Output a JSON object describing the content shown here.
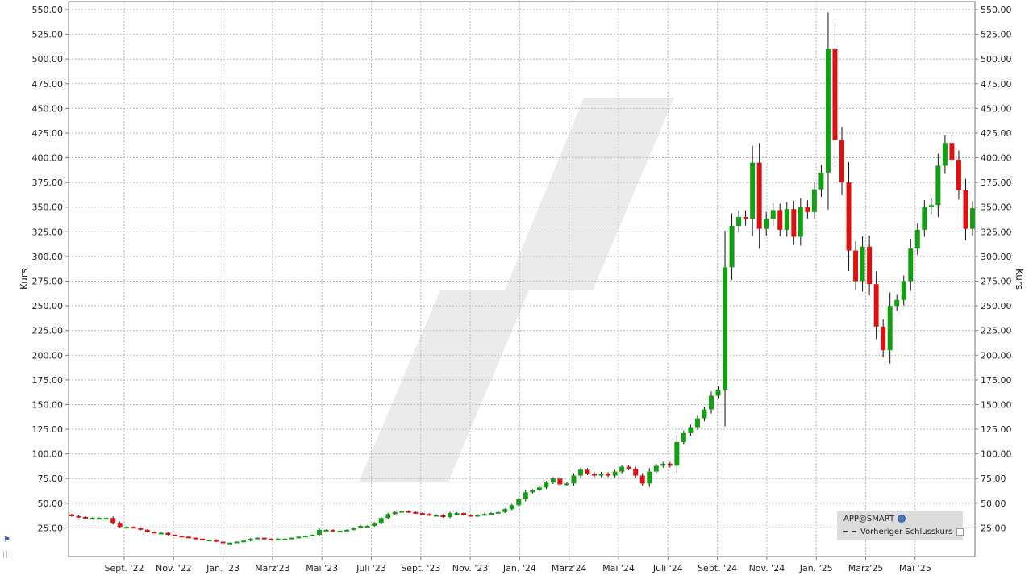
{
  "chart_data": {
    "type": "candlestick",
    "ylabel": "Kurs",
    "ylim": [
      0,
      560
    ],
    "yticks": [
      "25.00",
      "50.00",
      "75.00",
      "100.00",
      "125.00",
      "150.00",
      "175.00",
      "200.00",
      "225.00",
      "250.00",
      "275.00",
      "300.00",
      "325.00",
      "350.00",
      "375.00",
      "400.00",
      "425.00",
      "450.00",
      "475.00",
      "500.00",
      "525.00",
      "550.00"
    ],
    "xticks": [
      "Sept. '22",
      "Nov. '22",
      "Jan. '23",
      "März'23",
      "Mai '23",
      "Juli '23",
      "Sept. '23",
      "Nov. '23",
      "Jan. '24",
      "März'24",
      "Mai '24",
      "Juli '24",
      "Sept. '24",
      "Nov. '24",
      "Jan. '25",
      "März'25",
      "Mai '25"
    ],
    "grid": true,
    "legend_position": "bottom-right",
    "colors": {
      "up": "#11a011",
      "down": "#e01010",
      "grid": "#b9b9b9",
      "watermark": "#ebebeb"
    },
    "close": [
      37,
      36,
      35,
      35,
      35,
      35,
      30,
      26,
      26,
      25,
      23,
      21,
      20,
      20,
      18,
      17,
      16,
      15,
      14,
      13,
      13,
      11,
      10,
      10,
      11,
      12,
      14,
      15,
      14,
      13,
      14,
      14,
      15,
      16,
      17,
      18,
      23,
      23,
      22,
      22,
      23,
      25,
      27,
      27,
      30,
      35,
      39,
      41,
      42,
      41,
      40,
      39,
      38,
      38,
      36,
      40,
      40,
      38,
      37,
      38,
      39,
      40,
      41,
      44,
      48,
      54,
      61,
      63,
      66,
      71,
      75,
      69,
      70,
      78,
      84,
      80,
      78,
      80,
      78,
      82,
      87,
      85,
      78,
      70,
      82,
      88,
      90,
      88,
      112,
      121,
      127,
      136,
      145,
      159,
      165,
      289,
      331,
      340,
      338,
      395,
      328,
      338,
      347,
      327,
      348,
      320,
      350,
      345,
      368,
      385,
      510,
      418,
      375,
      306,
      275,
      310,
      272,
      229,
      205,
      250,
      256,
      275,
      308,
      327,
      350,
      352,
      392,
      415,
      398,
      367,
      328,
      349
    ],
    "series": [
      {
        "name": "APP@SMART"
      },
      {
        "name": "Vorheriger Schlusskurs"
      }
    ]
  },
  "legend": {
    "symbol": "APP@SMART",
    "previous_close": "Vorheriger Schlusskurs",
    "globe_icon": "globe-icon",
    "checkbox_icon": "checkbox-icon"
  }
}
